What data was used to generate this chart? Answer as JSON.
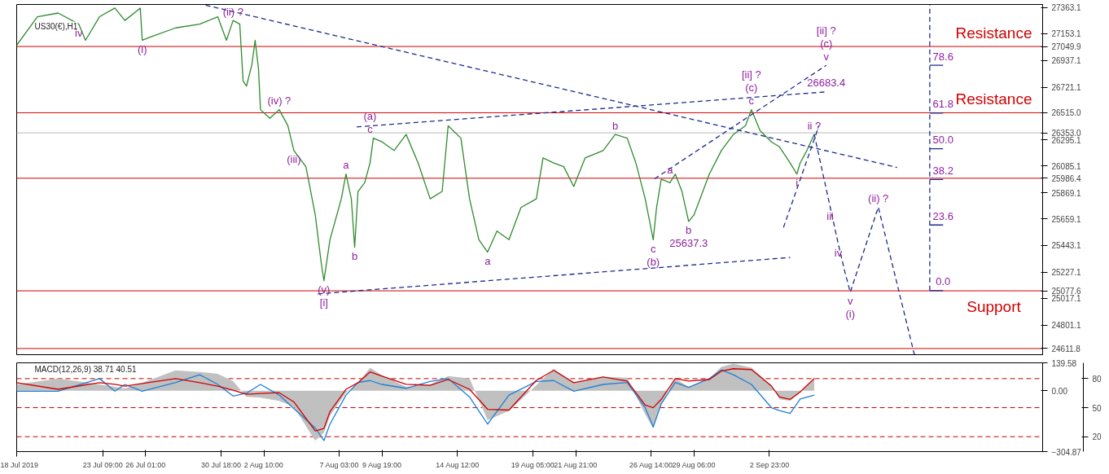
{
  "chart_data": [
    {
      "type": "line",
      "title": "US30(€),H1",
      "xlim": [
        "2019-07-18T00:00",
        "2019-09-20T00:00"
      ],
      "ylim": [
        24562,
        27389
      ],
      "tick_labels": "y",
      "grid": false,
      "line_style": "solid",
      "yticks": [
        27363.1,
        27153.1,
        26937.1,
        26721.1,
        {
          "value": 26515.0,
          "label": "26515.0"
        },
        26295.1,
        26085.1,
        25869.1,
        25659.1,
        25443.1,
        25227.1,
        25017.1,
        24801.1,
        {
          "value": 27049.9,
          "label": "27049.9"
        },
        {
          "value": 26353.0,
          "label": "26353.0"
        },
        {
          "value": 25986.4,
          "label": "25986.4"
        },
        {
          "value": 25077.6,
          "label": "25077.6"
        },
        {
          "value": 24611.8,
          "label": "24611.8"
        }
      ],
      "series": [
        {
          "color": "#2e8b2e",
          "x": [
            "2019-07-18T00:00",
            "2019-07-19T07:00",
            "2019-07-20T14:00",
            "2019-07-21T21:00",
            "2019-07-22T07:00",
            "2019-07-23T04:00",
            "2019-07-24T03:00",
            "2019-07-24T18:00",
            "2019-07-25T17:00",
            "2019-07-25T20:00",
            "2019-07-26T10:00",
            "2019-07-27T22:00",
            "2019-07-29T10:00",
            "2019-07-30T13:00",
            "2019-07-31T02:00",
            "2019-07-31T12:00",
            "2019-07-31T22:00",
            "2019-08-01T03:00",
            "2019-08-01T08:00",
            "2019-08-01T16:00",
            "2019-08-01T21:00",
            "2019-08-02T02:00",
            "2019-08-02T05:00",
            "2019-08-02T19:00",
            "2019-08-03T09:00",
            "2019-08-03T22:00",
            "2019-08-04T07:00",
            "2019-08-05T01:00",
            "2019-08-05T15:00",
            "2019-08-06T00:00",
            "2019-08-06T04:00",
            "2019-08-06T13:00",
            "2019-08-07T06:00",
            "2019-08-07T13:00",
            "2019-08-07T21:00",
            "2019-08-08T02:00",
            "2019-08-08T07:00",
            "2019-08-08T17:00",
            "2019-08-09T01:00",
            "2019-08-09T06:00",
            "2019-08-09T19:00",
            "2019-08-10T13:00",
            "2019-08-11T07:00",
            "2019-08-12T01:00",
            "2019-08-12T19:00",
            "2019-08-13T13:00",
            "2019-08-13T22:00",
            "2019-08-14T17:00",
            "2019-08-15T06:00",
            "2019-08-15T20:00",
            "2019-08-16T09:00",
            "2019-08-16T23:00",
            "2019-08-17T17:00",
            "2019-08-18T11:00",
            "2019-08-19T10:00",
            "2019-08-19T20:00",
            "2019-08-20T12:00",
            "2019-08-21T03:00",
            "2019-08-21T18:00",
            "2019-08-22T11:00",
            "2019-08-23T14:00",
            "2019-08-24T08:00",
            "2019-08-25T02:00",
            "2019-08-25T15:00",
            "2019-08-26T05:00",
            "2019-08-26T17:00",
            "2019-08-26T22:00",
            "2019-08-27T05:00",
            "2019-08-27T18:00",
            "2019-08-28T02:00",
            "2019-08-28T12:00",
            "2019-08-28T22:00",
            "2019-08-29T06:00",
            "2019-08-30T05:00",
            "2019-08-30T23:00",
            "2019-08-31T17:00",
            "2019-09-01T11:00",
            "2019-09-01T20:00",
            "2019-09-02T09:00",
            "2019-09-03T02:00",
            "2019-09-03T14:00",
            "2019-09-04T06:00",
            "2019-09-04T16:00",
            "2019-09-04T21:00",
            "2019-09-05T07:00",
            "2019-09-05T18:00"
          ],
          "values": [
            27060,
            27290,
            27320,
            27230,
            27100,
            27290,
            27360,
            27260,
            27360,
            27100,
            27130,
            27200,
            27230,
            27290,
            27100,
            27260,
            27230,
            26770,
            26730,
            26900,
            27100,
            26870,
            26540,
            26470,
            26540,
            26410,
            26210,
            26080,
            25690,
            25300,
            25160,
            25490,
            25820,
            26020,
            25820,
            25430,
            25880,
            25950,
            26110,
            26310,
            26280,
            26210,
            26340,
            26110,
            25820,
            25880,
            26410,
            26310,
            25820,
            25490,
            25390,
            25560,
            25490,
            25750,
            25820,
            26150,
            26110,
            26080,
            25920,
            26150,
            26210,
            26340,
            26310,
            26110,
            25820,
            25490,
            25750,
            25980,
            25950,
            26020,
            25880,
            25637.3,
            25690,
            26020,
            26210,
            26340,
            26410,
            26540,
            26370,
            26280,
            26240,
            26110,
            26020,
            26110,
            26210,
            26340
          ]
        },
        {
          "color": "#1c2a8c",
          "line_style": "dashed",
          "x": [
            "2019-07-29T19:00",
            "2019-09-10T22:00"
          ],
          "values": [
            27383,
            26074
          ]
        },
        {
          "color": "#1c2a8c",
          "line_style": "dashed",
          "x": [
            "2019-08-08T05:00",
            "2019-09-06T12:00"
          ],
          "values": [
            26401,
            26683.4
          ]
        },
        {
          "color": "#1c2a8c",
          "line_style": "dashed",
          "x": [
            "2019-08-05T19:00",
            "2019-09-04T06:00"
          ],
          "values": [
            25053,
            25347
          ]
        },
        {
          "color": "#1c2a8c",
          "line_style": "dashed",
          "x": [
            "2019-08-26T19:00",
            "2019-09-06T12:00"
          ],
          "values": [
            25982,
            26898
          ]
        },
        {
          "color": "#1c2a8c",
          "line_style": "dashed",
          "x": [
            "2019-09-03T20:00",
            "2019-09-06T01:00"
          ],
          "values": [
            25589,
            26408
          ]
        },
        {
          "color": "#1c2a8c",
          "line_style": "dashed",
          "x": [
            "2019-09-05T18:00",
            "2019-09-06T18:00",
            "2019-09-07T06:00",
            "2019-09-07T16:00",
            "2019-09-08T00:00",
            "2019-09-09T18:00",
            "2019-09-12T00:00"
          ],
          "values": [
            26342,
            25752,
            25457,
            25229,
            25066,
            25753,
            24562
          ]
        },
        {
          "color": "#1c2a8c",
          "line_style": "dashed",
          "x": [
            "2019-09-12T23:00",
            "2019-09-12T23:00"
          ],
          "values": [
            25079,
            27389
          ]
        },
        {
          "color": "#1c2a8c",
          "x": [
            "2019-09-12T23:00",
            "2019-09-13T19:00"
          ],
          "values": [
            26898,
            26898
          ]
        },
        {
          "color": "#1c2a8c",
          "x": [
            "2019-09-12T23:00",
            "2019-09-13T19:00"
          ],
          "values": [
            26512,
            26512
          ]
        },
        {
          "color": "#1c2a8c",
          "x": [
            "2019-09-12T23:00",
            "2019-09-13T19:00"
          ],
          "values": [
            26224,
            26224
          ]
        },
        {
          "color": "#1c2a8c",
          "x": [
            "2019-09-12T23:00",
            "2019-09-13T19:00"
          ],
          "values": [
            25976,
            25976
          ]
        },
        {
          "color": "#1c2a8c",
          "x": [
            "2019-09-12T23:00",
            "2019-09-13T19:00"
          ],
          "values": [
            25609,
            25609
          ]
        },
        {
          "color": "#1c2a8c",
          "x": [
            "2019-09-12T23:00",
            "2019-09-13T19:00"
          ],
          "values": [
            25079,
            25079
          ]
        }
      ],
      "ref_lines": [
        {
          "axis": "y",
          "value": 27049.9,
          "label": "Resistance",
          "color": "#d00000"
        },
        {
          "axis": "y",
          "value": 26515.0,
          "label": "Resistance",
          "color": "#d00000"
        },
        {
          "axis": "y",
          "value": 25986.4,
          "color": "#d00000"
        },
        {
          "axis": "y",
          "value": 25077.6,
          "label": "Support",
          "color": "#d00000"
        },
        {
          "axis": "y",
          "value": 24611.8,
          "color": "#d00000"
        },
        {
          "axis": "y",
          "value": 26353.0,
          "color": "#b8b8b8"
        }
      ],
      "annotations": [
        {
          "text": "iv",
          "x": "2019-07-21T21:00",
          "y": 27230
        },
        {
          "text": "(i)",
          "x": "2019-07-25T20:00",
          "y": 27100
        },
        {
          "text": "(ii) ?",
          "x": "2019-07-31T12:00",
          "y": 27260
        },
        {
          "text": "(iv) ?",
          "x": "2019-08-03T09:00",
          "y": 26540
        },
        {
          "text": "(iii)",
          "x": "2019-08-04T07:00",
          "y": 26210
        },
        {
          "text": "c",
          "x": "2019-08-09T01:00",
          "y": 26310
        },
        {
          "text": "(a)",
          "x": "2019-08-09T01:00",
          "y": 26310
        },
        {
          "text": "a",
          "x": "2019-08-07T13:00",
          "y": 26020
        },
        {
          "text": "b",
          "x": "2019-08-08T02:00",
          "y": 25430
        },
        {
          "text": "(v)",
          "x": "2019-08-06T04:00",
          "y": 25160
        },
        {
          "text": "[i]",
          "x": "2019-08-06T04:00",
          "y": 25160
        },
        {
          "text": "a",
          "x": "2019-08-16T09:00",
          "y": 25390
        },
        {
          "text": "b",
          "x": "2019-08-24T08:00",
          "y": 26340
        },
        {
          "text": "c",
          "x": "2019-08-26T17:00",
          "y": 25490
        },
        {
          "text": "(b)",
          "x": "2019-08-26T17:00",
          "y": 25490
        },
        {
          "text": "a",
          "x": "2019-08-27T18:00",
          "y": 25980
        },
        {
          "text": "b",
          "x": "2019-08-28T22:00",
          "y": 25637.3
        },
        {
          "text": "25637.3",
          "x": "2019-08-28T22:00",
          "y": 25637.3
        },
        {
          "text": "c",
          "x": "2019-09-01T20:00",
          "y": 26540
        },
        {
          "text": "(c)",
          "x": "2019-09-01T20:00",
          "y": 26540
        },
        {
          "text": "[ii] ?",
          "x": "2019-09-01T20:00",
          "y": 26540
        },
        {
          "text": "i",
          "x": "2019-09-04T16:00",
          "y": 26020
        },
        {
          "text": "ii ?",
          "x": "2019-09-05T18:00",
          "y": 26340
        },
        {
          "text": "v",
          "x": "2019-09-06T12:00",
          "y": 26898
        },
        {
          "text": "(c)",
          "x": "2019-09-06T12:00",
          "y": 26898
        },
        {
          "text": "[ii] ?",
          "x": "2019-09-06T12:00",
          "y": 26898
        },
        {
          "text": "26683.4",
          "x": "2019-09-06T12:00",
          "y": 26683.4
        },
        {
          "text": "iii",
          "x": "2019-09-06T18:00",
          "y": 25752
        },
        {
          "text": "iv",
          "x": "2019-09-07T06:00",
          "y": 25457
        },
        {
          "text": "v",
          "x": "2019-09-08T00:00",
          "y": 25066
        },
        {
          "text": "(i)",
          "x": "2019-09-08T00:00",
          "y": 25066
        },
        {
          "text": "(ii) ?",
          "x": "2019-09-09T18:00",
          "y": 25753
        },
        {
          "text": "78.6",
          "x": "2019-09-13T19:00",
          "y": 26898
        },
        {
          "text": "61.8",
          "x": "2019-09-13T19:00",
          "y": 26512
        },
        {
          "text": "50.0",
          "x": "2019-09-13T19:00",
          "y": 26224
        },
        {
          "text": "38.2",
          "x": "2019-09-13T19:00",
          "y": 25976
        },
        {
          "text": "23.6",
          "x": "2019-09-13T19:00",
          "y": 25609
        },
        {
          "text": "0.0",
          "x": "2019-09-13T19:00",
          "y": 25079
        }
      ]
    },
    {
      "type": "line",
      "title": "MACD(12,26,9) 38.71 40.51",
      "xlim": [
        "2019-07-18T00:00",
        "2019-09-20T00:00"
      ],
      "ylim": [
        -304.87,
        139.58
      ],
      "y2lim": [
        4.6,
        96.3
      ],
      "grid": false,
      "line_style": "solid",
      "xticks": [
        {
          "value": "2019-07-18T00:00",
          "label": "18 Jul 2019"
        },
        {
          "value": "2019-07-23T09:00",
          "label": "23 Jul 09:00"
        },
        {
          "value": "2019-07-26T01:00",
          "label": "26 Jul 01:00"
        },
        {
          "value": "2019-07-30T18:00",
          "label": "30 Jul 18:00"
        },
        {
          "value": "2019-08-02T10:00",
          "label": "2 Aug 10:00"
        },
        {
          "value": "2019-08-07T03:00",
          "label": "7 Aug 03:00"
        },
        {
          "value": "2019-08-09T19:00",
          "label": "9 Aug 19:00"
        },
        {
          "value": "2019-08-14T12:00",
          "label": "14 Aug 12:00"
        },
        {
          "value": "2019-08-19T05:00",
          "label": "19 Aug 05:00"
        },
        {
          "value": "2019-08-21T21:00",
          "label": "21 Aug 21:00"
        },
        {
          "value": "2019-08-26T14:00",
          "label": "26 Aug 14:00"
        },
        {
          "value": "2019-08-29T06:00",
          "label": "29 Aug 06:00"
        },
        {
          "value": "2019-09-02T23:00",
          "label": "2 Sep 23:00"
        }
      ],
      "yticks": [
        139.58,
        {
          "value": 0,
          "label": "0.00"
        },
        -304.87
      ],
      "y2ticks": [
        80,
        50,
        20
      ],
      "series": [
        {
          "type": "area",
          "color": "#c0c0c0",
          "values": [
            32,
            61,
            32,
            19,
            11,
            40,
            102,
            94,
            85,
            48,
            -31,
            -35,
            -51,
            -81,
            -251,
            -209,
            -126,
            -10,
            40,
            115,
            77,
            19,
            32,
            73,
            61,
            -147,
            -101,
            27,
            110,
            40,
            69,
            65,
            -118,
            -188,
            -64,
            61,
            19,
            61,
            119,
            135,
            115,
            27,
            -43,
            -51,
            -10,
            61
          ]
        },
        {
          "color": "#1e7fd6",
          "axis": "y2",
          "values": [
            67,
            67,
            80,
            67,
            74,
            67,
            76,
            84,
            74,
            62,
            65,
            74,
            63,
            49,
            29,
            16,
            33,
            63,
            76,
            78,
            74,
            70,
            77,
            80,
            61,
            33,
            63,
            77,
            78,
            67,
            74,
            76,
            50,
            30,
            54,
            76,
            71,
            80,
            89,
            84,
            74,
            50,
            47,
            44,
            59,
            63
          ]
        },
        {
          "color": "#d00000",
          "values": [
            40,
            7,
            40,
            32,
            23,
            36,
            61,
            40,
            23,
            2,
            -18,
            -14,
            -10,
            -56,
            -201,
            -189,
            -105,
            7,
            40,
            94,
            73,
            32,
            27,
            56,
            7,
            -93,
            -97,
            52,
            102,
            40,
            69,
            48,
            -72,
            -85,
            -43,
            61,
            48,
            56,
            98,
            110,
            106,
            23,
            -31,
            -43,
            -6,
            61
          ]
        }
      ],
      "x": [
        "2019-07-18T00:00",
        "2019-07-20T14:00",
        "2019-07-23T04:00",
        "2019-07-24T03:00",
        "2019-07-24T18:00",
        "2019-07-25T20:00",
        "2019-07-27T22:00",
        "2019-07-29T10:00",
        "2019-07-30T13:00",
        "2019-07-31T12:00",
        "2019-08-01T08:00",
        "2019-08-02T05:00",
        "2019-08-03T09:00",
        "2019-08-04T07:00",
        "2019-08-05T15:00",
        "2019-08-06T04:00",
        "2019-08-06T13:00",
        "2019-08-07T13:00",
        "2019-08-08T07:00",
        "2019-08-09T01:00",
        "2019-08-09T19:00",
        "2019-08-11T07:00",
        "2019-08-12T19:00",
        "2019-08-13T22:00",
        "2019-08-15T06:00",
        "2019-08-16T09:00",
        "2019-08-17T17:00",
        "2019-08-19T10:00",
        "2019-08-20T12:00",
        "2019-08-21T18:00",
        "2019-08-23T14:00",
        "2019-08-25T02:00",
        "2019-08-26T05:00",
        "2019-08-26T17:00",
        "2019-08-27T05:00",
        "2019-08-28T02:00",
        "2019-08-28T22:00",
        "2019-08-30T05:00",
        "2019-08-30T23:00",
        "2019-08-31T17:00",
        "2019-09-01T20:00",
        "2019-09-03T02:00",
        "2019-09-03T14:00",
        "2019-09-04T06:00",
        "2019-09-04T21:00",
        "2019-09-05T18:00"
      ],
      "ref_lines": [
        {
          "axis": "y2",
          "value": 80,
          "color": "#c00000",
          "line_style": "dashed"
        },
        {
          "axis": "y2",
          "value": 50,
          "color": "#c00000",
          "line_style": "dashed"
        },
        {
          "axis": "y2",
          "value": 20,
          "color": "#c00000",
          "line_style": "dashed"
        }
      ]
    }
  ]
}
